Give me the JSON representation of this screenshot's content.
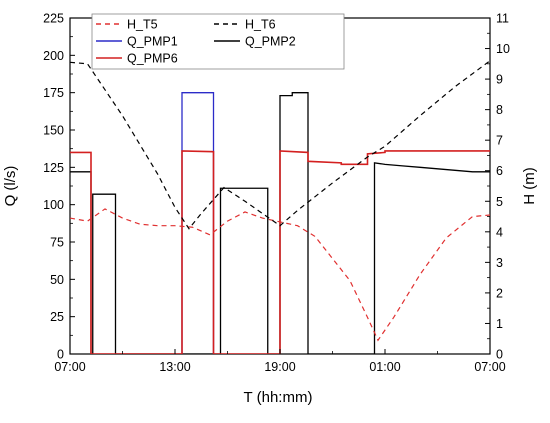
{
  "chart_data": {
    "type": "line",
    "title": "",
    "xlabel": "T (hh:mm)",
    "ylabel_left": "Q (l/s)",
    "ylabel_right": "H (m)",
    "x_unit": "hours since 07:00",
    "xlim": [
      0,
      24
    ],
    "ylim_left": [
      0,
      225
    ],
    "ylim_right": [
      0,
      11
    ],
    "x_ticks": [
      {
        "v": 0,
        "label": "07:00"
      },
      {
        "v": 6,
        "label": "13:00"
      },
      {
        "v": 12,
        "label": "19:00"
      },
      {
        "v": 18,
        "label": "01:00"
      },
      {
        "v": 24,
        "label": "07:00"
      }
    ],
    "y_ticks_left": [
      0,
      25,
      50,
      75,
      100,
      125,
      150,
      175,
      200,
      225
    ],
    "y_ticks_right": [
      0,
      1,
      2,
      3,
      4,
      5,
      6,
      7,
      8,
      9,
      10,
      11
    ],
    "grid": false,
    "legend_position": "top-left",
    "legend": [
      {
        "name": "H_T5",
        "color": "#e03030",
        "dash": "5,4",
        "row": 0,
        "col": 0
      },
      {
        "name": "H_T6",
        "color": "#000000",
        "dash": "5,4",
        "row": 0,
        "col": 1
      },
      {
        "name": "Q_PMP1",
        "color": "#2b2bc8",
        "dash": "",
        "row": 1,
        "col": 0
      },
      {
        "name": "Q_PMP2",
        "color": "#000000",
        "dash": "",
        "row": 1,
        "col": 1
      },
      {
        "name": "Q_PMP6",
        "color": "#d42020",
        "dash": "",
        "row": 2,
        "col": 0
      }
    ],
    "series": [
      {
        "name": "Q_PMP1",
        "axis": "left",
        "color": "#2b2bc8",
        "dash": "",
        "width": 1.3,
        "points": [
          [
            6.4,
            0
          ],
          [
            6.4,
            175
          ],
          [
            8.2,
            175
          ],
          [
            8.2,
            0
          ]
        ]
      },
      {
        "name": "Q_PMP2",
        "axis": "left",
        "color": "#000000",
        "dash": "",
        "width": 1.3,
        "points": [
          [
            0,
            122
          ],
          [
            1.2,
            122
          ],
          [
            1.2,
            0
          ],
          [
            1.3,
            0
          ],
          [
            1.3,
            107
          ],
          [
            2.6,
            107
          ],
          [
            2.6,
            0
          ],
          [
            8.6,
            0
          ],
          [
            8.6,
            111
          ],
          [
            11.3,
            111
          ],
          [
            11.3,
            0
          ],
          [
            12.0,
            0
          ],
          [
            12.0,
            173
          ],
          [
            12.7,
            173
          ],
          [
            12.7,
            175
          ],
          [
            13.6,
            175
          ],
          [
            13.6,
            0
          ],
          [
            17.4,
            0
          ],
          [
            17.4,
            128
          ],
          [
            18.0,
            127
          ],
          [
            19.0,
            126
          ],
          [
            20.0,
            125
          ],
          [
            21.0,
            124
          ],
          [
            22.0,
            123
          ],
          [
            23.0,
            122
          ],
          [
            24,
            122
          ]
        ]
      },
      {
        "name": "Q_PMP6",
        "axis": "left",
        "color": "#d42020",
        "dash": "",
        "width": 1.6,
        "points": [
          [
            0,
            135
          ],
          [
            1.2,
            135
          ],
          [
            1.2,
            0
          ],
          [
            6.4,
            0
          ],
          [
            6.4,
            136
          ],
          [
            8.2,
            135.5
          ],
          [
            8.2,
            0
          ],
          [
            12.0,
            0
          ],
          [
            12.0,
            136
          ],
          [
            13.6,
            135
          ],
          [
            13.6,
            129
          ],
          [
            15.5,
            128
          ],
          [
            15.5,
            127
          ],
          [
            17.0,
            127
          ],
          [
            17.0,
            134
          ],
          [
            18.0,
            135
          ],
          [
            18.0,
            136
          ],
          [
            24,
            136
          ]
        ]
      },
      {
        "name": "H_T5",
        "axis": "right",
        "color": "#e03030",
        "dash": "5,4",
        "width": 1.2,
        "points": [
          [
            0,
            4.45
          ],
          [
            1.0,
            4.35
          ],
          [
            2.0,
            4.75
          ],
          [
            3.0,
            4.45
          ],
          [
            4.0,
            4.25
          ],
          [
            5.0,
            4.2
          ],
          [
            6.0,
            4.2
          ],
          [
            7.0,
            4.15
          ],
          [
            8.0,
            3.9
          ],
          [
            9.0,
            4.35
          ],
          [
            10.0,
            4.65
          ],
          [
            11.0,
            4.45
          ],
          [
            13.0,
            4.2
          ],
          [
            14.0,
            3.85
          ],
          [
            16.0,
            2.4
          ],
          [
            17.0,
            1.2
          ],
          [
            17.6,
            0.45
          ],
          [
            18.5,
            1.2
          ],
          [
            20.0,
            2.6
          ],
          [
            21.5,
            3.8
          ],
          [
            23.0,
            4.5
          ],
          [
            24,
            4.55
          ]
        ]
      },
      {
        "name": "H_T6",
        "axis": "right",
        "color": "#000000",
        "dash": "5,4",
        "width": 1.2,
        "points": [
          [
            0,
            9.55
          ],
          [
            1.0,
            9.5
          ],
          [
            3.0,
            7.8
          ],
          [
            5.0,
            5.9
          ],
          [
            6.0,
            4.8
          ],
          [
            6.8,
            4.1
          ],
          [
            7.5,
            4.6
          ],
          [
            8.8,
            5.45
          ],
          [
            10.0,
            5.0
          ],
          [
            11.0,
            4.6
          ],
          [
            12.0,
            4.2
          ],
          [
            13.0,
            4.7
          ],
          [
            15.0,
            5.6
          ],
          [
            17.0,
            6.45
          ],
          [
            18.0,
            6.8
          ],
          [
            20.0,
            7.8
          ],
          [
            22.0,
            8.75
          ],
          [
            24,
            9.6
          ]
        ]
      }
    ]
  }
}
